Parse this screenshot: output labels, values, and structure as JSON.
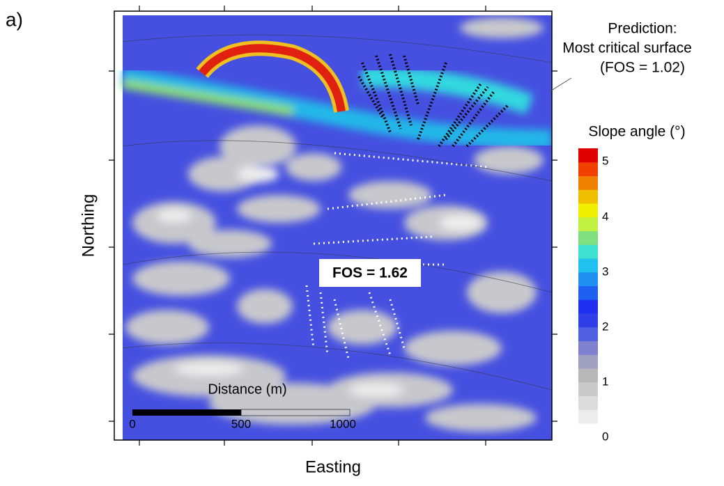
{
  "panel_label": "a)",
  "axes": {
    "x_label": "Easting",
    "y_label": "Northing"
  },
  "annotations": {
    "prediction": [
      "Prediction:",
      "Most critical surface",
      "(FOS = 1.02)"
    ],
    "fos_box": "FOS = 1.62"
  },
  "scale_bar": {
    "title": "Distance (m)",
    "labels": [
      "0",
      "500",
      "1000"
    ]
  },
  "colorbar": {
    "title": "Slope angle (°)",
    "ticks": [
      "0",
      "1",
      "2",
      "3",
      "4",
      "5"
    ]
  }
}
